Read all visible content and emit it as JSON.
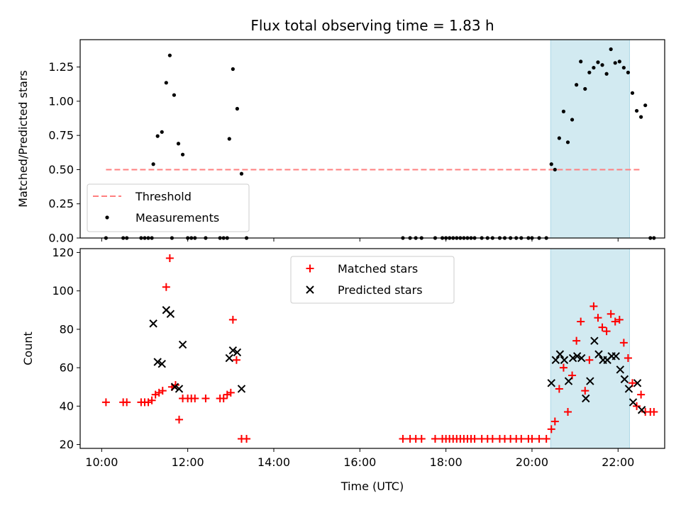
{
  "colors": {
    "matched": "#ff0000",
    "predicted": "#000000",
    "measurement": "#000000",
    "threshold": "#ff7f7f",
    "observing_band": "#add8e6"
  },
  "chart_data": [
    {
      "type": "scatter",
      "title": "Flux total observing time = 1.83 h",
      "xlabel": "",
      "ylabel": "Matched/Predicted stars",
      "xlim": [
        "09:30",
        "23:05"
      ],
      "ylim": [
        0,
        1.45
      ],
      "yticks": [
        "0.00",
        "0.25",
        "0.50",
        "0.75",
        "1.00",
        "1.25"
      ],
      "grid": false,
      "legend_position": "lower-left",
      "observing_band": [
        "20:26",
        "22:16"
      ],
      "threshold": {
        "name": "Threshold",
        "y": 0.5,
        "x_range": [
          "10:06",
          "22:30"
        ]
      },
      "series": [
        {
          "name": "Measurements",
          "points": [
            [
              "10:06",
              0
            ],
            [
              "10:30",
              0
            ],
            [
              "10:35",
              0
            ],
            [
              "10:55",
              0
            ],
            [
              "11:00",
              0
            ],
            [
              "11:05",
              0
            ],
            [
              "11:10",
              0
            ],
            [
              "11:12",
              0.54
            ],
            [
              "11:18",
              0.745
            ],
            [
              "11:24",
              0.775
            ],
            [
              "11:30",
              1.135
            ],
            [
              "11:35",
              1.335
            ],
            [
              "11:38",
              0
            ],
            [
              "11:41",
              1.045
            ],
            [
              "11:47",
              0.69
            ],
            [
              "11:53",
              0.61
            ],
            [
              "12:00",
              0
            ],
            [
              "12:05",
              0
            ],
            [
              "12:10",
              0
            ],
            [
              "12:25",
              0
            ],
            [
              "12:45",
              0
            ],
            [
              "12:50",
              0
            ],
            [
              "12:55",
              0
            ],
            [
              "12:58",
              0.725
            ],
            [
              "13:03",
              1.235
            ],
            [
              "13:09",
              0.945
            ],
            [
              "13:15",
              0.47
            ],
            [
              "13:22",
              0
            ],
            [
              "17:00",
              0
            ],
            [
              "17:10",
              0
            ],
            [
              "17:18",
              0
            ],
            [
              "17:26",
              0
            ],
            [
              "17:45",
              0
            ],
            [
              "17:55",
              0
            ],
            [
              "18:00",
              0
            ],
            [
              "18:05",
              0
            ],
            [
              "18:10",
              0
            ],
            [
              "18:15",
              0
            ],
            [
              "18:20",
              0
            ],
            [
              "18:25",
              0
            ],
            [
              "18:30",
              0
            ],
            [
              "18:35",
              0
            ],
            [
              "18:40",
              0
            ],
            [
              "18:50",
              0
            ],
            [
              "18:58",
              0
            ],
            [
              "19:05",
              0
            ],
            [
              "19:15",
              0
            ],
            [
              "19:22",
              0
            ],
            [
              "19:30",
              0
            ],
            [
              "19:38",
              0
            ],
            [
              "19:45",
              0
            ],
            [
              "19:55",
              0
            ],
            [
              "20:00",
              0
            ],
            [
              "20:10",
              0
            ],
            [
              "20:20",
              0
            ],
            [
              "20:27",
              0.54
            ],
            [
              "20:32",
              0.5
            ],
            [
              "20:38",
              0.73
            ],
            [
              "20:44",
              0.925
            ],
            [
              "20:50",
              0.7
            ],
            [
              "20:56",
              0.865
            ],
            [
              "21:02",
              1.12
            ],
            [
              "21:08",
              1.29
            ],
            [
              "21:14",
              1.09
            ],
            [
              "21:20",
              1.21
            ],
            [
              "21:26",
              1.245
            ],
            [
              "21:32",
              1.285
            ],
            [
              "21:38",
              1.265
            ],
            [
              "21:44",
              1.2
            ],
            [
              "21:50",
              1.38
            ],
            [
              "21:56",
              1.28
            ],
            [
              "22:02",
              1.29
            ],
            [
              "22:08",
              1.245
            ],
            [
              "22:14",
              1.21
            ],
            [
              "22:20",
              1.06
            ],
            [
              "22:26",
              0.93
            ],
            [
              "22:32",
              0.885
            ],
            [
              "22:38",
              0.97
            ],
            [
              "22:45",
              0
            ],
            [
              "22:50",
              0
            ]
          ]
        }
      ]
    },
    {
      "type": "scatter",
      "title": "",
      "xlabel": "Time (UTC)",
      "ylabel": "Count",
      "xlim": [
        "09:30",
        "23:05"
      ],
      "ylim": [
        18,
        122
      ],
      "xticks": [
        "10:00",
        "12:00",
        "14:00",
        "16:00",
        "18:00",
        "20:00",
        "22:00"
      ],
      "yticks": [
        "20",
        "40",
        "60",
        "80",
        "100",
        "120"
      ],
      "grid": false,
      "legend_position": "upper-center",
      "observing_band": [
        "20:26",
        "22:16"
      ],
      "series": [
        {
          "name": "Matched stars",
          "points": [
            [
              "10:06",
              42
            ],
            [
              "10:30",
              42
            ],
            [
              "10:35",
              42
            ],
            [
              "10:55",
              42
            ],
            [
              "11:00",
              42
            ],
            [
              "11:05",
              42
            ],
            [
              "11:10",
              43
            ],
            [
              "11:15",
              46
            ],
            [
              "11:20",
              47
            ],
            [
              "11:25",
              48
            ],
            [
              "11:30",
              102
            ],
            [
              "11:35",
              117
            ],
            [
              "11:38",
              50
            ],
            [
              "11:43",
              51
            ],
            [
              "11:48",
              33
            ],
            [
              "11:53",
              44
            ],
            [
              "12:00",
              44
            ],
            [
              "12:05",
              44
            ],
            [
              "12:10",
              44
            ],
            [
              "12:25",
              44
            ],
            [
              "12:45",
              44
            ],
            [
              "12:50",
              44
            ],
            [
              "12:55",
              46
            ],
            [
              "13:00",
              47
            ],
            [
              "13:03",
              85
            ],
            [
              "13:08",
              64
            ],
            [
              "13:15",
              23
            ],
            [
              "13:22",
              23
            ],
            [
              "17:00",
              23
            ],
            [
              "17:10",
              23
            ],
            [
              "17:18",
              23
            ],
            [
              "17:26",
              23
            ],
            [
              "17:45",
              23
            ],
            [
              "17:55",
              23
            ],
            [
              "18:00",
              23
            ],
            [
              "18:05",
              23
            ],
            [
              "18:10",
              23
            ],
            [
              "18:15",
              23
            ],
            [
              "18:20",
              23
            ],
            [
              "18:25",
              23
            ],
            [
              "18:30",
              23
            ],
            [
              "18:35",
              23
            ],
            [
              "18:40",
              23
            ],
            [
              "18:50",
              23
            ],
            [
              "18:58",
              23
            ],
            [
              "19:05",
              23
            ],
            [
              "19:15",
              23
            ],
            [
              "19:22",
              23
            ],
            [
              "19:30",
              23
            ],
            [
              "19:38",
              23
            ],
            [
              "19:45",
              23
            ],
            [
              "19:55",
              23
            ],
            [
              "20:00",
              23
            ],
            [
              "20:10",
              23
            ],
            [
              "20:20",
              23
            ],
            [
              "20:27",
              28
            ],
            [
              "20:32",
              32
            ],
            [
              "20:38",
              49
            ],
            [
              "20:44",
              60
            ],
            [
              "20:50",
              37
            ],
            [
              "20:56",
              56
            ],
            [
              "21:02",
              74
            ],
            [
              "21:08",
              84
            ],
            [
              "21:14",
              48
            ],
            [
              "21:20",
              64
            ],
            [
              "21:26",
              92
            ],
            [
              "21:32",
              86
            ],
            [
              "21:38",
              81
            ],
            [
              "21:44",
              79
            ],
            [
              "21:50",
              88
            ],
            [
              "21:56",
              84
            ],
            [
              "22:02",
              85
            ],
            [
              "22:08",
              73
            ],
            [
              "22:14",
              65
            ],
            [
              "22:20",
              52
            ],
            [
              "22:26",
              40
            ],
            [
              "22:32",
              46
            ],
            [
              "22:38",
              37
            ],
            [
              "22:45",
              37
            ],
            [
              "22:50",
              37
            ]
          ]
        },
        {
          "name": "Predicted stars",
          "points": [
            [
              "11:12",
              83
            ],
            [
              "11:18",
              63
            ],
            [
              "11:24",
              62
            ],
            [
              "11:30",
              90
            ],
            [
              "11:36",
              88
            ],
            [
              "11:42",
              50
            ],
            [
              "11:48",
              49
            ],
            [
              "11:53",
              72
            ],
            [
              "12:58",
              65
            ],
            [
              "13:03",
              69
            ],
            [
              "13:09",
              68
            ],
            [
              "13:15",
              49
            ],
            [
              "20:27",
              52
            ],
            [
              "20:33",
              64
            ],
            [
              "20:39",
              67
            ],
            [
              "20:45",
              64
            ],
            [
              "20:51",
              53
            ],
            [
              "20:57",
              65
            ],
            [
              "21:03",
              66
            ],
            [
              "21:09",
              65
            ],
            [
              "21:15",
              44
            ],
            [
              "21:21",
              53
            ],
            [
              "21:27",
              74
            ],
            [
              "21:33",
              67
            ],
            [
              "21:39",
              64
            ],
            [
              "21:45",
              64
            ],
            [
              "21:51",
              66
            ],
            [
              "21:57",
              66
            ],
            [
              "22:03",
              59
            ],
            [
              "22:09",
              54
            ],
            [
              "22:15",
              49
            ],
            [
              "22:21",
              42
            ],
            [
              "22:27",
              52
            ],
            [
              "22:33",
              38
            ]
          ]
        }
      ]
    }
  ]
}
